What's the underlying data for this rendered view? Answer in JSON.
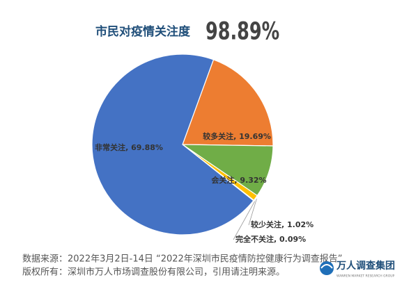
{
  "chart_data": {
    "type": "pie",
    "title": "市民对疫情关注度",
    "headline": "98.89%",
    "categories": [
      "较多关注",
      "会关注",
      "较少关注",
      "完全不关注",
      "非常关注"
    ],
    "values": [
      19.69,
      9.32,
      1.02,
      0.09,
      69.88
    ],
    "value_labels": [
      "较多关注, 19.69%",
      "会关注, 9.32%",
      "较少关注, 1.02%",
      "完全不关注, 0.09%",
      "非常关注, 69.88%"
    ],
    "colors": [
      "#ed7d31",
      "#70ad47",
      "#ffc000",
      "#a5a5a5",
      "#4472c4"
    ]
  },
  "footer": {
    "source": "数据来源：2022年3月2日-14日 “2022年深圳市民疫情防控健康行为调查报告”",
    "copyright": "版权所有：深圳市万人市场调查股份有限公司，引用请注明来源。"
  },
  "logo": {
    "name": "万人调查集团",
    "sub": "WANREN MARKET RESEARCH GROUP"
  }
}
